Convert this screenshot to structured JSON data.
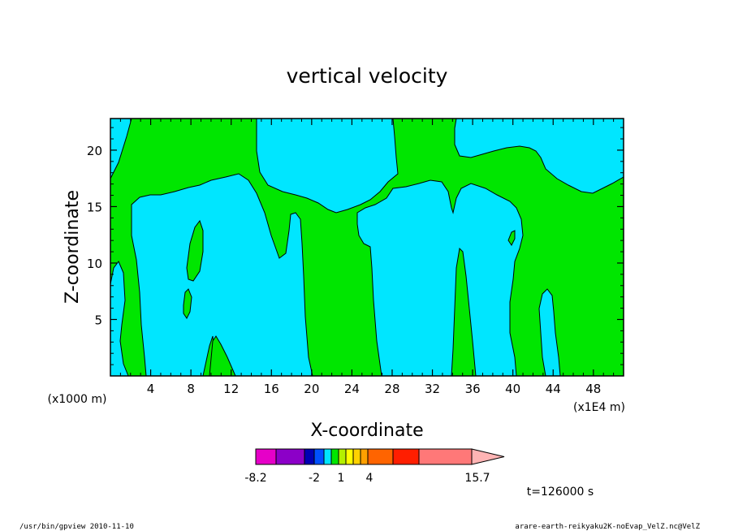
{
  "chart_data": {
    "type": "heatmap",
    "title": "vertical velocity",
    "xlabel": "X-coordinate",
    "ylabel": "Z-coordinate",
    "x_unit_label": "(x1E4 m)",
    "y_unit_label": "(x1000 m)",
    "xlim": [
      0,
      51
    ],
    "ylim": [
      0,
      22.8
    ],
    "x_ticks": [
      "4",
      "8",
      "12",
      "16",
      "20",
      "24",
      "28",
      "32",
      "36",
      "40",
      "44",
      "48"
    ],
    "y_ticks": [
      "5",
      "10",
      "15",
      "20"
    ],
    "grid": false,
    "fill_levels": [
      {
        "level": "positive",
        "color": "#00e600"
      },
      {
        "level": "negative",
        "color": "#00e6ff"
      }
    ],
    "colorbar": {
      "colors": [
        "#e600c8",
        "#8c00c8",
        "#0000b4",
        "#0050ff",
        "#00e6ff",
        "#00e600",
        "#b4f000",
        "#ffff00",
        "#ffd200",
        "#ffa000",
        "#ff6400",
        "#ff1e00",
        "#ff7878",
        "#ffb4b4"
      ],
      "labels": [
        "-8.2",
        "-2",
        "1",
        "4",
        "15.7"
      ],
      "range": [
        -8.2,
        15.7
      ]
    },
    "time_label": "t=126000 s"
  },
  "footer": {
    "left": "/usr/bin/gpview   2010-11-10",
    "right": "arare-earth-reikyaku2K-noEvap_VelZ.nc@VelZ"
  }
}
